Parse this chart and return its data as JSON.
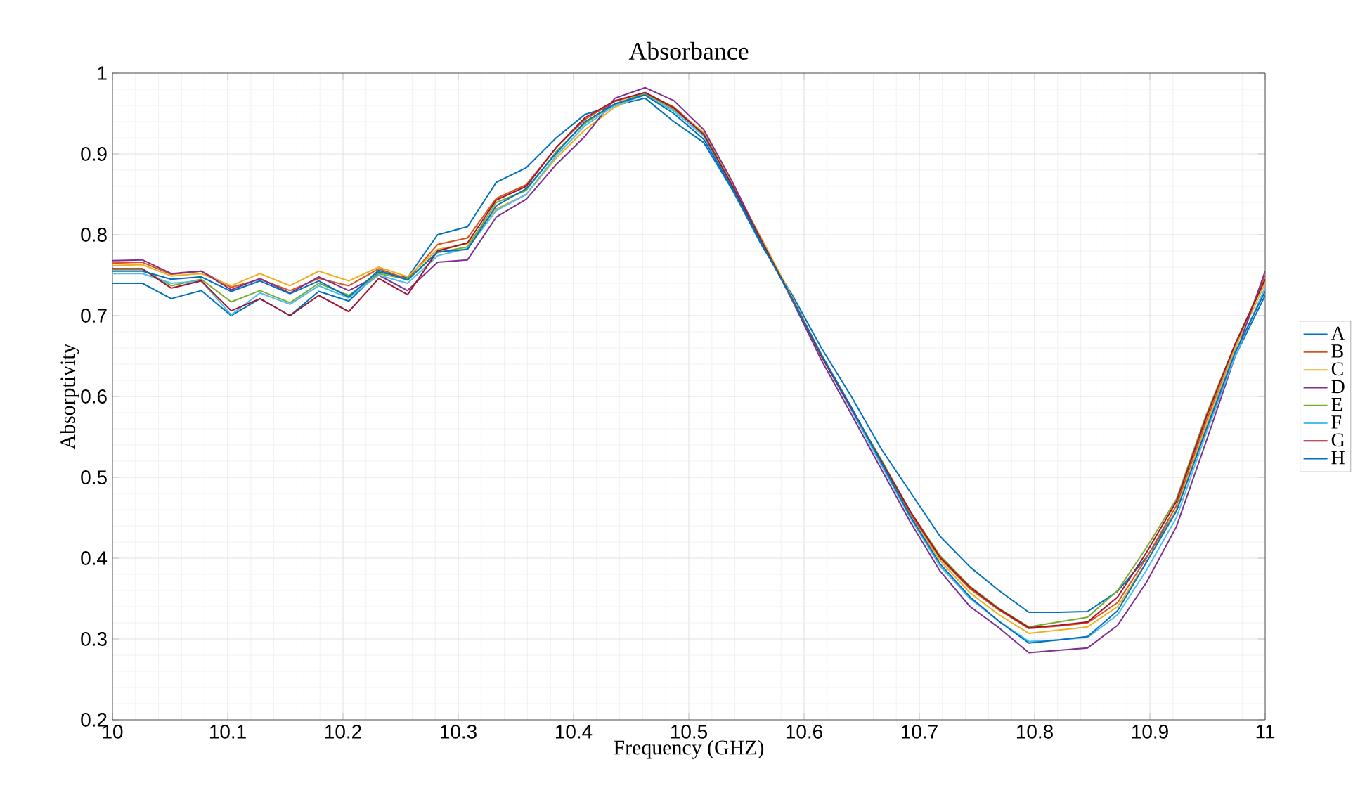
{
  "chart_data": {
    "type": "line",
    "title": "Absorbance",
    "xlabel": "Frequency (GHZ)",
    "ylabel": "Absorptivity",
    "x": [
      10.0,
      10.026,
      10.051,
      10.077,
      10.103,
      10.128,
      10.154,
      10.179,
      10.205,
      10.231,
      10.256,
      10.282,
      10.308,
      10.333,
      10.359,
      10.385,
      10.41,
      10.436,
      10.462,
      10.487,
      10.513,
      10.538,
      10.564,
      10.59,
      10.615,
      10.641,
      10.667,
      10.692,
      10.718,
      10.744,
      10.769,
      10.795,
      10.821,
      10.846,
      10.872,
      10.897,
      10.923,
      10.949,
      10.974,
      11.0
    ],
    "series": [
      {
        "name": "A",
        "color": "#0072bd",
        "values": [
          0.74,
          0.74,
          0.721,
          0.731,
          0.7,
          0.721,
          0.7,
          0.73,
          0.718,
          0.754,
          0.747,
          0.8,
          0.81,
          0.865,
          0.883,
          0.92,
          0.949,
          0.96,
          0.969,
          0.94,
          0.914,
          0.855,
          0.785,
          0.725,
          0.66,
          0.6,
          0.535,
          0.482,
          0.427,
          0.389,
          0.36,
          0.333,
          0.333,
          0.334,
          0.359,
          0.401,
          0.459,
          0.56,
          0.65,
          0.725
        ]
      },
      {
        "name": "B",
        "color": "#d95319",
        "values": [
          0.765,
          0.766,
          0.751,
          0.755,
          0.735,
          0.745,
          0.731,
          0.746,
          0.737,
          0.758,
          0.745,
          0.788,
          0.796,
          0.845,
          0.862,
          0.908,
          0.943,
          0.965,
          0.976,
          0.958,
          0.925,
          0.86,
          0.79,
          0.72,
          0.65,
          0.585,
          0.52,
          0.455,
          0.4,
          0.362,
          0.336,
          0.313,
          0.316,
          0.32,
          0.345,
          0.4,
          0.465,
          0.57,
          0.66,
          0.75
        ]
      },
      {
        "name": "C",
        "color": "#edb120",
        "values": [
          0.762,
          0.763,
          0.749,
          0.752,
          0.737,
          0.752,
          0.737,
          0.755,
          0.743,
          0.76,
          0.748,
          0.782,
          0.789,
          0.832,
          0.85,
          0.895,
          0.93,
          0.958,
          0.974,
          0.955,
          0.927,
          0.862,
          0.793,
          0.722,
          0.652,
          0.585,
          0.518,
          0.452,
          0.397,
          0.357,
          0.33,
          0.307,
          0.311,
          0.315,
          0.34,
          0.395,
          0.46,
          0.565,
          0.66,
          0.74
        ]
      },
      {
        "name": "D",
        "color": "#7e2f8e",
        "values": [
          0.768,
          0.769,
          0.752,
          0.755,
          0.732,
          0.746,
          0.728,
          0.748,
          0.731,
          0.75,
          0.731,
          0.766,
          0.769,
          0.822,
          0.844,
          0.887,
          0.922,
          0.969,
          0.982,
          0.966,
          0.93,
          0.865,
          0.79,
          0.718,
          0.645,
          0.578,
          0.51,
          0.445,
          0.384,
          0.34,
          0.314,
          0.283,
          0.286,
          0.289,
          0.317,
          0.37,
          0.439,
          0.545,
          0.65,
          0.755
        ]
      },
      {
        "name": "E",
        "color": "#77ac30",
        "values": [
          0.757,
          0.757,
          0.737,
          0.745,
          0.717,
          0.731,
          0.716,
          0.74,
          0.725,
          0.752,
          0.745,
          0.778,
          0.785,
          0.84,
          0.855,
          0.903,
          0.938,
          0.962,
          0.975,
          0.955,
          0.925,
          0.86,
          0.79,
          0.72,
          0.65,
          0.585,
          0.522,
          0.458,
          0.403,
          0.365,
          0.338,
          0.315,
          0.321,
          0.327,
          0.36,
          0.413,
          0.473,
          0.578,
          0.665,
          0.745
        ]
      },
      {
        "name": "F",
        "color": "#4dbeee",
        "values": [
          0.752,
          0.752,
          0.74,
          0.743,
          0.701,
          0.728,
          0.714,
          0.737,
          0.722,
          0.75,
          0.74,
          0.774,
          0.783,
          0.83,
          0.85,
          0.898,
          0.935,
          0.96,
          0.973,
          0.953,
          0.922,
          0.858,
          0.788,
          0.72,
          0.65,
          0.583,
          0.515,
          0.45,
          0.39,
          0.35,
          0.322,
          0.297,
          0.299,
          0.302,
          0.33,
          0.385,
          0.45,
          0.555,
          0.65,
          0.735
        ]
      },
      {
        "name": "G",
        "color": "#a2142f",
        "values": [
          0.758,
          0.758,
          0.734,
          0.743,
          0.706,
          0.721,
          0.7,
          0.725,
          0.705,
          0.746,
          0.726,
          0.78,
          0.79,
          0.843,
          0.86,
          0.908,
          0.945,
          0.966,
          0.976,
          0.957,
          0.924,
          0.86,
          0.79,
          0.72,
          0.65,
          0.585,
          0.52,
          0.458,
          0.401,
          0.364,
          0.337,
          0.314,
          0.317,
          0.321,
          0.352,
          0.407,
          0.47,
          0.575,
          0.665,
          0.745
        ]
      },
      {
        "name": "H",
        "color": "#0072bd",
        "values": [
          0.755,
          0.755,
          0.745,
          0.748,
          0.73,
          0.743,
          0.727,
          0.743,
          0.723,
          0.756,
          0.744,
          0.779,
          0.782,
          0.836,
          0.857,
          0.901,
          0.94,
          0.962,
          0.973,
          0.95,
          0.918,
          0.857,
          0.787,
          0.72,
          0.652,
          0.587,
          0.518,
          0.452,
          0.393,
          0.352,
          0.322,
          0.295,
          0.299,
          0.303,
          0.335,
          0.395,
          0.458,
          0.56,
          0.655,
          0.73
        ]
      }
    ],
    "xlim": [
      10,
      11
    ],
    "ylim": [
      0.2,
      1
    ],
    "xticks": [
      10,
      10.1,
      10.2,
      10.3,
      10.4,
      10.5,
      10.6,
      10.7,
      10.8,
      10.9,
      11
    ],
    "yticks": [
      0.2,
      0.3,
      0.4,
      0.5,
      0.6,
      0.7,
      0.8,
      0.9,
      1
    ],
    "grid": true,
    "legend": "right"
  }
}
